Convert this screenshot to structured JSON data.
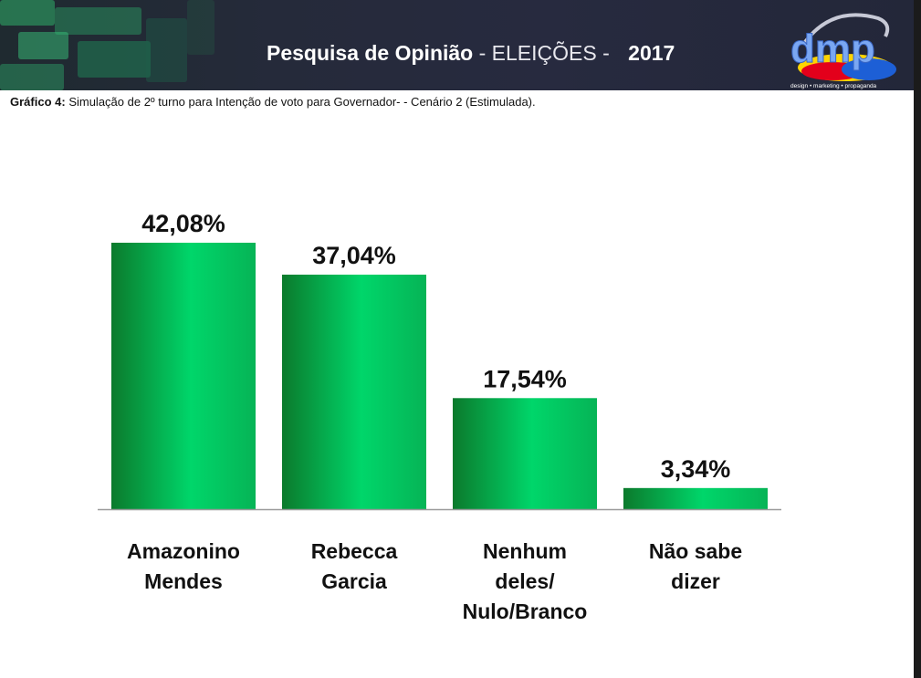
{
  "header": {
    "title_strong": "Pesquisa de Opinião",
    "title_light": "- ELEIÇÕES -",
    "year": "2017",
    "logo_text": "dmp",
    "logo_tagline": "design • marketing • propaganda"
  },
  "caption": {
    "label": "Gráfico 4:",
    "text": "Simulação de 2º turno para Intenção de voto para Governador- - Cenário 2 (Estimulada)."
  },
  "colors": {
    "bar_dark": "#0b7a2c",
    "bar_light": "#00d66a",
    "header_bg": "#252a3a",
    "axis": "#9a9a9a"
  },
  "chart_data": {
    "type": "bar",
    "categories": [
      [
        "Amazonino",
        "Mendes"
      ],
      [
        "Rebecca",
        "Garcia"
      ],
      [
        "Nenhum",
        "deles/",
        "Nulo/Branco"
      ],
      [
        "Não sabe",
        "dizer"
      ]
    ],
    "values": [
      42.08,
      37.04,
      17.54,
      3.34
    ],
    "value_labels": [
      "42,08%",
      "37,04%",
      "17,54%",
      "3,34%"
    ],
    "ylim": [
      0,
      42.08
    ],
    "grid": false,
    "legend": false
  }
}
